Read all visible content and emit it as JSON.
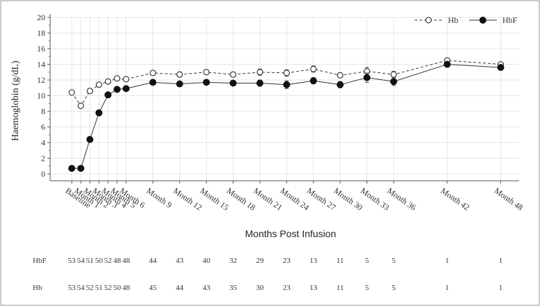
{
  "chart_data": {
    "type": "line",
    "ylabel": "Haemoglobin (g/dL)",
    "xlabel": "Months Post Infusion",
    "ylim": [
      0,
      20
    ],
    "yticks": [
      0,
      2,
      4,
      6,
      8,
      10,
      12,
      14,
      16,
      18,
      20
    ],
    "grid": true,
    "legend_position": "top-right",
    "categories": [
      "Baseline",
      "Month 1",
      "Month 2",
      "Month 3",
      "Month 4",
      "Month 5",
      "Month 6",
      "Month 9",
      "Month 12",
      "Month 15",
      "Month 18",
      "Month 21",
      "Month 24",
      "Month 27",
      "Month 30",
      "Month 33",
      "Month 36",
      "Month 42",
      "Month 48"
    ],
    "x_months": [
      0,
      1,
      2,
      3,
      4,
      5,
      6,
      9,
      12,
      15,
      18,
      21,
      24,
      27,
      30,
      33,
      36,
      42,
      48
    ],
    "series": [
      {
        "name": "Hb",
        "style": "dashed",
        "marker": "open-circle",
        "values": [
          10.4,
          8.7,
          10.6,
          11.4,
          11.8,
          12.2,
          12.1,
          12.9,
          12.7,
          13.0,
          12.7,
          13.0,
          12.9,
          13.4,
          12.6,
          13.1,
          12.7,
          14.5,
          14.0
        ],
        "err": [
          0.2,
          0.2,
          0.2,
          0.2,
          0.3,
          0.2,
          0.2,
          0.3,
          0.3,
          0.3,
          0.3,
          0.4,
          0.4,
          0.4,
          0.3,
          0.5,
          0.4,
          0.0,
          0.0
        ]
      },
      {
        "name": "HbF",
        "style": "solid",
        "marker": "filled-circle",
        "values": [
          0.7,
          0.7,
          4.4,
          7.8,
          10.1,
          10.8,
          10.9,
          11.7,
          11.5,
          11.7,
          11.6,
          11.6,
          11.4,
          11.9,
          11.4,
          12.3,
          11.8,
          14.0,
          13.6
        ],
        "err": [
          0.1,
          0.1,
          0.2,
          0.3,
          0.3,
          0.3,
          0.3,
          0.3,
          0.3,
          0.3,
          0.3,
          0.4,
          0.5,
          0.4,
          0.4,
          0.6,
          0.5,
          0.0,
          0.0
        ]
      }
    ],
    "n_at_risk": [
      {
        "name": "HbF",
        "values": [
          "53",
          "54",
          "51",
          "50",
          "52",
          "48",
          "48",
          "44",
          "43",
          "40",
          "32",
          "29",
          "23",
          "13",
          "11",
          "5",
          "5",
          "1",
          "1"
        ]
      },
      {
        "name": "Hb",
        "values": [
          "53",
          "54",
          "52",
          "51",
          "52",
          "50",
          "48",
          "45",
          "44",
          "43",
          "35",
          "30",
          "23",
          "13",
          "11",
          "5",
          "5",
          "1",
          "1"
        ]
      }
    ]
  }
}
